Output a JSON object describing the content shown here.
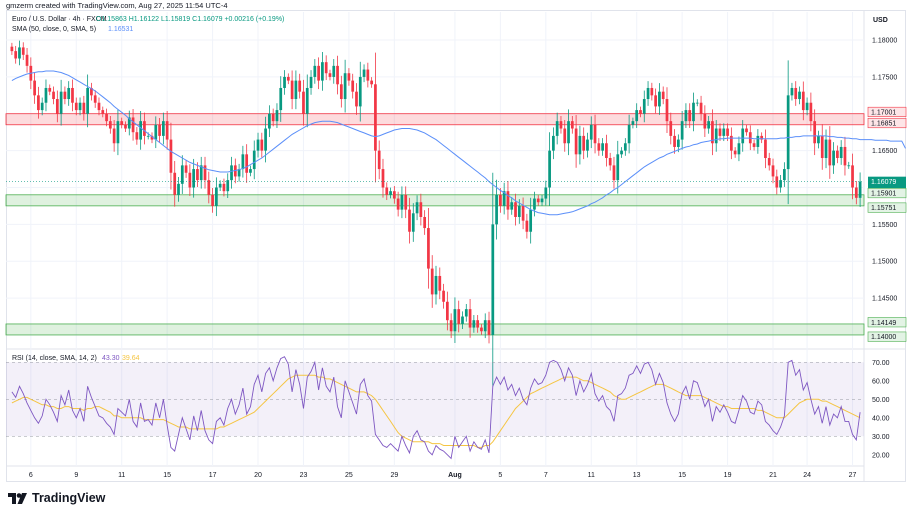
{
  "caption": "gmzerm created with TradingView.com, Aug 27, 2025 11:54 UTC-4",
  "legend": {
    "symbol_line": "Euro / U.S. Dollar · 4h · FXCM",
    "ohlc": "O1.15863 H1.16122 L1.15819 C1.16079 +0.00216 (+0.19%)",
    "sma_line_label": "SMA (50, close, 0, SMA, 5)",
    "sma_value": "1.16531",
    "rsi_label": "RSI (14, close, SMA, 14, 2)",
    "rsi_value": "43.30",
    "rsi_ma_value": "39.64"
  },
  "currency": "USD",
  "brand": "TradingView",
  "colors": {
    "up": "#089981",
    "down": "#f23645",
    "sma": "#5b8ff9",
    "rsi": "#7e57c2",
    "rsi_ma": "#f5c542",
    "resistance_zone": "#f23645",
    "support_zone": "#4caf50"
  },
  "chart_data": [
    {
      "type": "candlestick",
      "title": "Euro / U.S. Dollar · 4h · FXCM",
      "ylim": [
        1.1385,
        1.1815
      ],
      "yticks": [
        1.14,
        1.145,
        1.15,
        1.155,
        1.16,
        1.165,
        1.17,
        1.175,
        1.18
      ],
      "ytick_labels": [
        "1.14000",
        "1.14500",
        "1.15000",
        "1.15500",
        "1.16000",
        "1.16500",
        "1.17000",
        "1.17500",
        "1.18000"
      ],
      "x_labels": [
        {
          "label": "6",
          "bar": 5
        },
        {
          "label": "9",
          "bar": 17
        },
        {
          "label": "11",
          "bar": 29
        },
        {
          "label": "15",
          "bar": 41
        },
        {
          "label": "17",
          "bar": 53
        },
        {
          "label": "20",
          "bar": 65
        },
        {
          "label": "23",
          "bar": 77
        },
        {
          "label": "25",
          "bar": 89
        },
        {
          "label": "29",
          "bar": 101
        },
        {
          "label": "Aug",
          "bar": 117
        },
        {
          "label": "5",
          "bar": 129
        },
        {
          "label": "7",
          "bar": 141
        },
        {
          "label": "11",
          "bar": 153
        },
        {
          "label": "13",
          "bar": 165
        },
        {
          "label": "15",
          "bar": 177
        },
        {
          "label": "19",
          "bar": 189
        },
        {
          "label": "21",
          "bar": 201
        },
        {
          "label": "24",
          "bar": 210
        },
        {
          "label": "27",
          "bar": 222
        }
      ],
      "close": [
        1.1785,
        1.1775,
        1.179,
        1.178,
        1.1765,
        1.1745,
        1.1725,
        1.1705,
        1.1715,
        1.1735,
        1.173,
        1.172,
        1.17,
        1.173,
        1.172,
        1.1735,
        1.1715,
        1.1705,
        1.1715,
        1.17,
        1.1735,
        1.1725,
        1.1715,
        1.1705,
        1.17,
        1.169,
        1.168,
        1.166,
        1.169,
        1.1685,
        1.168,
        1.1695,
        1.1675,
        1.1665,
        1.169,
        1.167,
        1.167,
        1.1665,
        1.1685,
        1.167,
        1.169,
        1.1665,
        1.162,
        1.159,
        1.1605,
        1.163,
        1.162,
        1.16,
        1.1625,
        1.161,
        1.163,
        1.161,
        1.159,
        1.1575,
        1.16,
        1.1605,
        1.1595,
        1.161,
        1.163,
        1.1615,
        1.1625,
        1.1645,
        1.162,
        1.1625,
        1.165,
        1.1665,
        1.165,
        1.168,
        1.17,
        1.169,
        1.1705,
        1.1735,
        1.175,
        1.1745,
        1.172,
        1.1745,
        1.173,
        1.17,
        1.1735,
        1.175,
        1.1765,
        1.1745,
        1.177,
        1.1755,
        1.175,
        1.1765,
        1.174,
        1.172,
        1.1755,
        1.1745,
        1.173,
        1.171,
        1.175,
        1.176,
        1.1745,
        1.174,
        1.165,
        1.1625,
        1.16,
        1.159,
        1.1595,
        1.1585,
        1.157,
        1.159,
        1.157,
        1.154,
        1.1565,
        1.158,
        1.156,
        1.1545,
        1.149,
        1.1455,
        1.148,
        1.146,
        1.1445,
        1.142,
        1.1405,
        1.1435,
        1.1415,
        1.1425,
        1.1435,
        1.141,
        1.142,
        1.141,
        1.1405,
        1.142,
        1.14,
        1.155,
        1.159,
        1.1575,
        1.1595,
        1.157,
        1.158,
        1.156,
        1.1575,
        1.1555,
        1.154,
        1.157,
        1.1585,
        1.158,
        1.1585,
        1.16,
        1.165,
        1.167,
        1.169,
        1.168,
        1.166,
        1.169,
        1.168,
        1.1645,
        1.167,
        1.165,
        1.1665,
        1.1685,
        1.166,
        1.165,
        1.166,
        1.164,
        1.163,
        1.161,
        1.1645,
        1.165,
        1.166,
        1.1685,
        1.169,
        1.1705,
        1.17,
        1.172,
        1.1735,
        1.1725,
        1.171,
        1.173,
        1.172,
        1.169,
        1.167,
        1.1655,
        1.1665,
        1.169,
        1.1705,
        1.169,
        1.1715,
        1.1715,
        1.17,
        1.168,
        1.169,
        1.166,
        1.168,
        1.167,
        1.168,
        1.167,
        1.165,
        1.1645,
        1.166,
        1.168,
        1.1675,
        1.166,
        1.1655,
        1.167,
        1.1665,
        1.164,
        1.163,
        1.1615,
        1.16,
        1.161,
        1.1625,
        1.1725,
        1.1735,
        1.172,
        1.173,
        1.1705,
        1.1715,
        1.169,
        1.166,
        1.167,
        1.164,
        1.1665,
        1.163,
        1.165,
        1.164,
        1.1655,
        1.163,
        1.163,
        1.16,
        1.1586,
        1.1608
      ],
      "sma": [
        1.1745,
        1.1748,
        1.175,
        1.1752,
        1.1754,
        1.1755,
        1.1756,
        1.1757,
        1.1757,
        1.1758,
        1.1758,
        1.1758,
        1.1757,
        1.1756,
        1.1754,
        1.1752,
        1.1749,
        1.1746,
        1.1743,
        1.174,
        1.1737,
        1.1734,
        1.1731,
        1.1727,
        1.1723,
        1.1719,
        1.1715,
        1.171,
        1.1706,
        1.1702,
        1.1698,
        1.1693,
        1.1689,
        1.1685,
        1.1681,
        1.1677,
        1.1673,
        1.1669,
        1.1665,
        1.1661,
        1.1657,
        1.1653,
        1.1649,
        1.1646,
        1.1643,
        1.164,
        1.1637,
        1.1634,
        1.1632,
        1.163,
        1.1628,
        1.1626,
        1.1624,
        1.1623,
        1.1622,
        1.1621,
        1.1621,
        1.1621,
        1.1622,
        1.1623,
        1.1624,
        1.1626,
        1.1628,
        1.1631,
        1.1634,
        1.1637,
        1.164,
        1.1644,
        1.1648,
        1.1652,
        1.1656,
        1.166,
        1.1664,
        1.1668,
        1.1672,
        1.1675,
        1.1678,
        1.1681,
        1.1684,
        1.1686,
        1.1688,
        1.1689,
        1.169,
        1.169,
        1.169,
        1.1689,
        1.1688,
        1.1686,
        1.1684,
        1.1682,
        1.168,
        1.1678,
        1.1676,
        1.1674,
        1.1672,
        1.167,
        1.1669,
        1.167,
        1.1672,
        1.1674,
        1.1676,
        1.1678,
        1.1679,
        1.168,
        1.168,
        1.168,
        1.1679,
        1.1678,
        1.1676,
        1.1674,
        1.1671,
        1.1668,
        1.1665,
        1.1661,
        1.1657,
        1.1653,
        1.1649,
        1.1645,
        1.1641,
        1.1637,
        1.1633,
        1.1629,
        1.1625,
        1.1621,
        1.1617,
        1.1613,
        1.1608,
        1.1604,
        1.16,
        1.1596,
        1.1593,
        1.1589,
        1.1586,
        1.1582,
        1.1579,
        1.1576,
        1.1573,
        1.157,
        1.1568,
        1.1566,
        1.1565,
        1.1564,
        1.1563,
        1.1563,
        1.1563,
        1.1564,
        1.1565,
        1.1566,
        1.1567,
        1.1569,
        1.1571,
        1.1573,
        1.1575,
        1.1578,
        1.158,
        1.1583,
        1.1586,
        1.159,
        1.1593,
        1.1597,
        1.16,
        1.1604,
        1.1608,
        1.1612,
        1.1616,
        1.162,
        1.1624,
        1.1628,
        1.1631,
        1.1634,
        1.1637,
        1.164,
        1.1642,
        1.1645,
        1.1647,
        1.1649,
        1.1651,
        1.1653,
        1.1655,
        1.1656,
        1.1658,
        1.1659,
        1.1661,
        1.1662,
        1.1663,
        1.1664,
        1.1665,
        1.1666,
        1.1666,
        1.1667,
        1.1667,
        1.1667,
        1.1667,
        1.1667,
        1.1667,
        1.1667,
        1.1666,
        1.1666,
        1.1666,
        1.1666,
        1.1666,
        1.1666,
        1.1666,
        1.1667,
        1.1667,
        1.1668,
        1.1668,
        1.1669,
        1.1669,
        1.167,
        1.167,
        1.167,
        1.167,
        1.167,
        1.167,
        1.167,
        1.1669,
        1.1669,
        1.1668,
        1.1668,
        1.1667,
        1.1667,
        1.1666,
        1.1666,
        1.1665,
        1.1665,
        1.1665,
        1.1665,
        1.1664,
        1.1664,
        1.1664,
        1.1664,
        1.1663,
        1.1663,
        1.1663,
        1.1663,
        1.1653
      ],
      "price_labels": [
        {
          "value": 1.17001,
          "text": "1.17001",
          "kind": "resistance"
        },
        {
          "value": 1.16851,
          "text": "1.16851",
          "kind": "resistance"
        },
        {
          "value": 1.16079,
          "text": "1.16079",
          "kind": "last",
          "countdown": "01:05:17"
        },
        {
          "value": 1.15901,
          "text": "1.15901",
          "kind": "support"
        },
        {
          "value": 1.15751,
          "text": "1.15751",
          "kind": "support"
        },
        {
          "value": 1.14149,
          "text": "1.14149",
          "kind": "support"
        },
        {
          "value": 1.14,
          "text": "1.14000",
          "kind": "support"
        }
      ],
      "zones": [
        {
          "from": 1.16851,
          "to": 1.17001,
          "kind": "resistance"
        },
        {
          "from": 1.15751,
          "to": 1.15901,
          "kind": "support"
        },
        {
          "from": 1.14,
          "to": 1.14149,
          "kind": "support"
        }
      ]
    },
    {
      "type": "line",
      "title": "RSI (14, close, SMA, 14, 2)",
      "ylim": [
        15,
        75
      ],
      "yticks": [
        20,
        30,
        40,
        50,
        60,
        70
      ],
      "ytick_labels": [
        "20.00",
        "30.00",
        "40.00",
        "50.00",
        "60.00",
        "70.00"
      ],
      "band": [
        30,
        70
      ],
      "midline": 50,
      "series": [
        {
          "values": [
            54,
            51,
            57,
            53,
            48,
            44,
            40,
            37,
            41,
            50,
            47,
            43,
            38,
            52,
            47,
            55,
            44,
            40,
            45,
            38,
            57,
            51,
            46,
            41,
            40,
            37,
            35,
            31,
            45,
            43,
            41,
            50,
            38,
            35,
            48,
            38,
            39,
            36,
            48,
            40,
            50,
            36,
            24,
            22,
            31,
            40,
            34,
            28,
            41,
            33,
            44,
            33,
            28,
            26,
            38,
            40,
            36,
            45,
            50,
            42,
            47,
            56,
            42,
            46,
            58,
            63,
            54,
            64,
            67,
            60,
            67,
            72,
            73,
            69,
            54,
            66,
            58,
            45,
            62,
            65,
            70,
            55,
            67,
            57,
            54,
            62,
            46,
            40,
            60,
            54,
            48,
            42,
            58,
            61,
            52,
            49,
            31,
            28,
            25,
            24,
            26,
            24,
            22,
            30,
            25,
            21,
            30,
            33,
            28,
            27,
            22,
            20,
            25,
            23,
            22,
            20,
            18,
            30,
            24,
            27,
            30,
            22,
            27,
            24,
            23,
            28,
            21,
            57,
            62,
            58,
            62,
            55,
            58,
            52,
            56,
            50,
            47,
            56,
            61,
            58,
            59,
            63,
            70,
            71,
            70,
            66,
            60,
            67,
            63,
            52,
            60,
            54,
            58,
            64,
            53,
            49,
            52,
            46,
            44,
            38,
            52,
            53,
            56,
            63,
            64,
            68,
            64,
            69,
            70,
            66,
            58,
            64,
            59,
            48,
            42,
            38,
            42,
            53,
            57,
            50,
            60,
            59,
            53,
            46,
            50,
            38,
            46,
            43,
            47,
            43,
            38,
            37,
            44,
            52,
            49,
            43,
            42,
            49,
            47,
            38,
            36,
            33,
            31,
            35,
            41,
            70,
            71,
            63,
            66,
            55,
            59,
            50,
            42,
            46,
            37,
            46,
            36,
            42,
            40,
            46,
            38,
            38,
            31,
            28,
            43
          ]
        },
        {
          "values": [
            48,
            49,
            50,
            51,
            51,
            50,
            49,
            48,
            47,
            47,
            46,
            46,
            45,
            45,
            46,
            46,
            45,
            45,
            45,
            44,
            45,
            45,
            46,
            46,
            45,
            44,
            43,
            41,
            41,
            40,
            40,
            40,
            40,
            40,
            40,
            39,
            39,
            39,
            39,
            39,
            39,
            38,
            37,
            36,
            35,
            35,
            35,
            34,
            34,
            34,
            34,
            34,
            34,
            34,
            34,
            35,
            35,
            36,
            37,
            38,
            39,
            40,
            41,
            42,
            43,
            45,
            47,
            49,
            51,
            53,
            55,
            57,
            59,
            61,
            62,
            63,
            63,
            63,
            63,
            63,
            63,
            62,
            62,
            61,
            61,
            60,
            59,
            58,
            57,
            56,
            55,
            54,
            54,
            54,
            53,
            52,
            50,
            47,
            44,
            41,
            38,
            35,
            32,
            30,
            29,
            28,
            27,
            27,
            27,
            27,
            27,
            26,
            26,
            26,
            25,
            25,
            25,
            25,
            25,
            25,
            25,
            25,
            25,
            24,
            24,
            25,
            25,
            27,
            30,
            33,
            36,
            39,
            42,
            45,
            47,
            49,
            51,
            53,
            54,
            55,
            56,
            57,
            58,
            59,
            60,
            61,
            62,
            62,
            62,
            62,
            61,
            60,
            60,
            59,
            58,
            57,
            56,
            55,
            54,
            52,
            51,
            50,
            50,
            51,
            52,
            53,
            54,
            55,
            56,
            57,
            58,
            58,
            58,
            57,
            56,
            55,
            54,
            53,
            52,
            52,
            52,
            52,
            52,
            51,
            50,
            49,
            48,
            47,
            46,
            46,
            45,
            45,
            45,
            45,
            45,
            45,
            45,
            44,
            44,
            43,
            42,
            41,
            40,
            40,
            40,
            42,
            44,
            46,
            48,
            49,
            50,
            50,
            50,
            50,
            49,
            49,
            48,
            47,
            46,
            45,
            44,
            43,
            42,
            41,
            40
          ]
        }
      ]
    }
  ]
}
